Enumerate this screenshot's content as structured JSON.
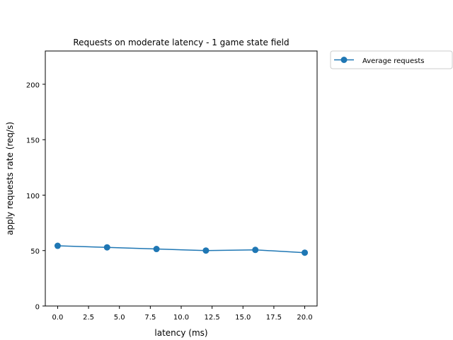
{
  "chart_data": {
    "type": "line",
    "title": "Requests on moderate latency - 1 game state field",
    "xlabel": "latency (ms)",
    "ylabel": "apply requests rate (req/s)",
    "xlim": [
      -1.0,
      21.0
    ],
    "ylim": [
      0,
      230
    ],
    "xticks": [
      0.0,
      2.5,
      5.0,
      7.5,
      10.0,
      12.5,
      15.0,
      17.5,
      20.0
    ],
    "xtick_labels": [
      "0.0",
      "2.5",
      "5.0",
      "7.5",
      "10.0",
      "12.5",
      "15.0",
      "17.5",
      "20.0"
    ],
    "yticks": [
      0,
      50,
      100,
      150,
      200
    ],
    "ytick_labels": [
      "0",
      "50",
      "100",
      "150",
      "200"
    ],
    "grid": false,
    "legend_position": "outside-top-right",
    "series": [
      {
        "name": "Average requests",
        "color": "#1f77b4",
        "marker": "circle",
        "x": [
          0,
          4,
          8,
          12,
          16,
          20
        ],
        "y": [
          54.3,
          52.9,
          51.4,
          50.0,
          50.6,
          48.1
        ]
      }
    ]
  }
}
